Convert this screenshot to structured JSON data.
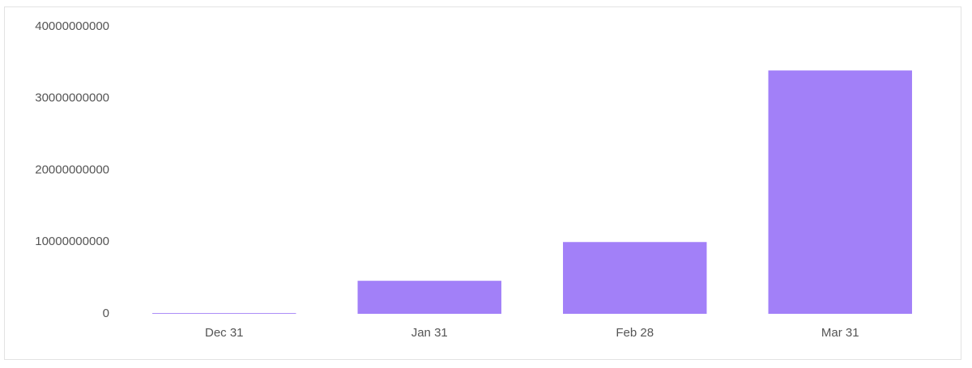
{
  "chart_data": {
    "type": "bar",
    "categories": [
      "Dec 31",
      "Jan 31",
      "Feb 28",
      "Mar 31"
    ],
    "values": [
      100000000,
      4600000000,
      10000000000,
      33900000000
    ],
    "color": "#a280f8",
    "ylim": [
      0,
      40000000000
    ],
    "yticks": [
      0,
      10000000000,
      20000000000,
      30000000000,
      40000000000
    ],
    "grid": false
  }
}
